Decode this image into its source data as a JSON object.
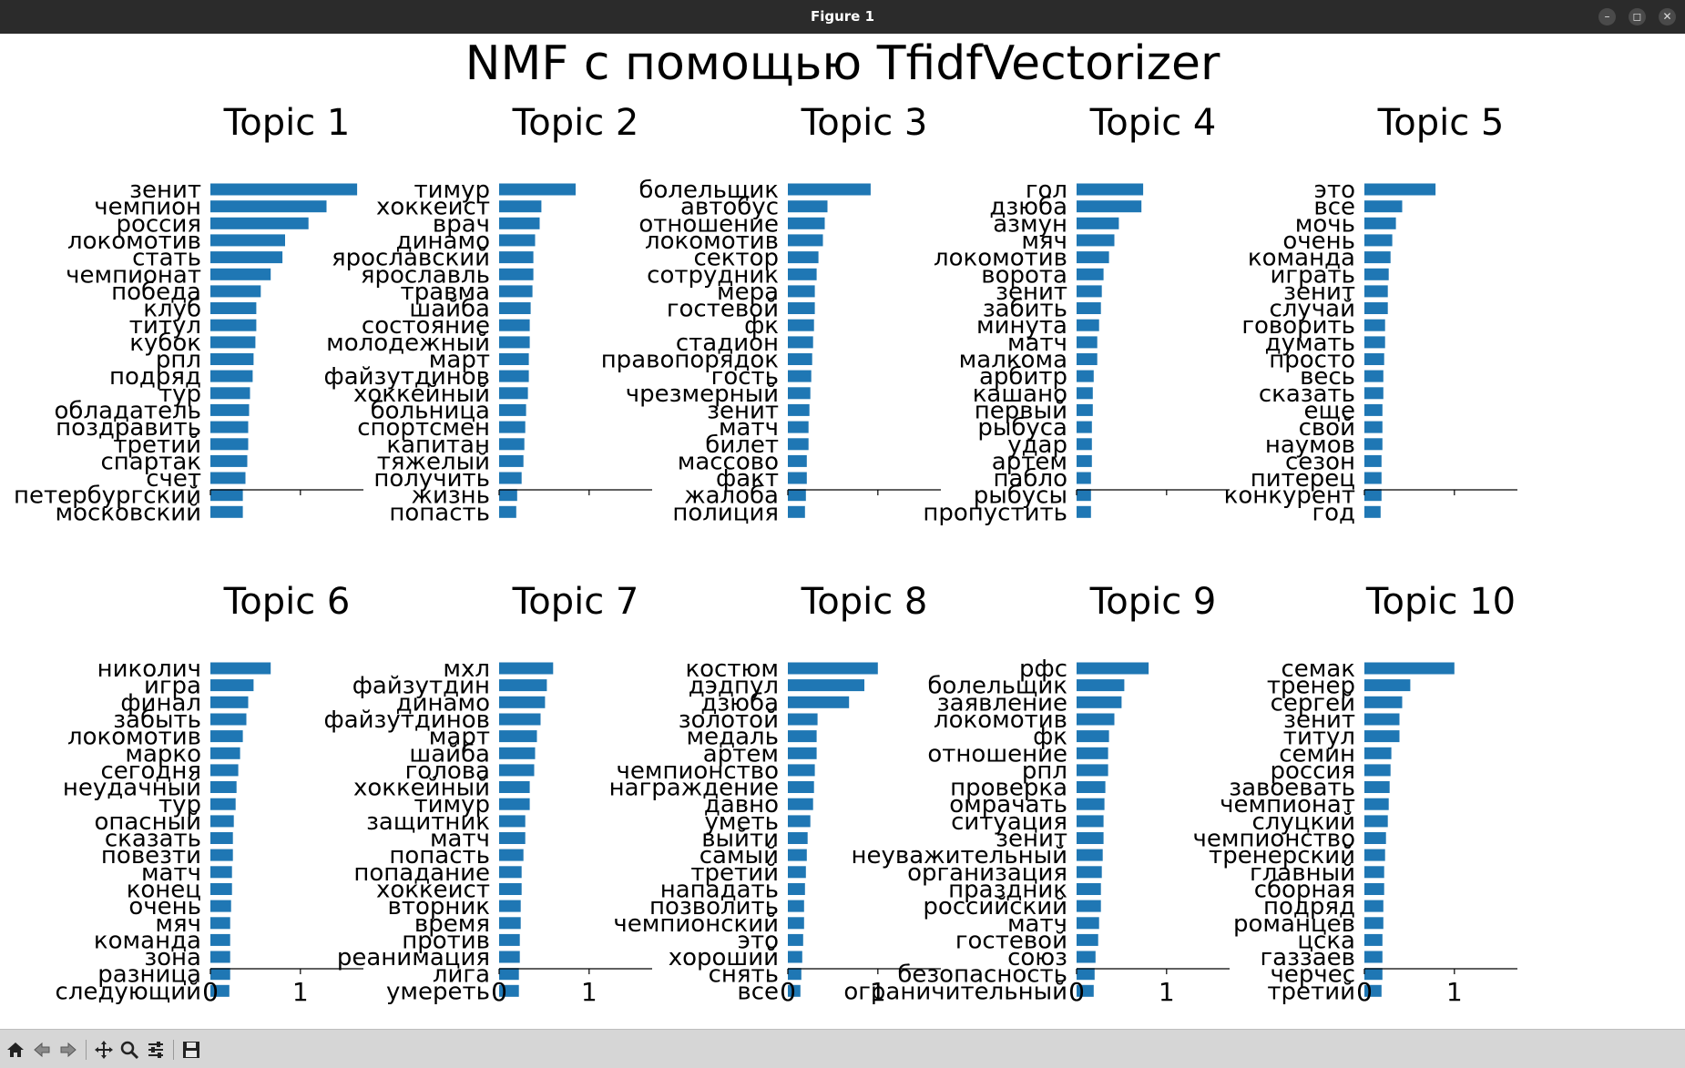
{
  "window": {
    "title": "Figure 1"
  },
  "toolbar": {
    "icons": [
      "home-icon",
      "back-icon",
      "forward-icon",
      "pan-icon",
      "zoom-icon",
      "configure-subplots-icon",
      "save-icon"
    ]
  },
  "colors": {
    "bar": "#1f77b4",
    "titlebar": "#2b2b2b",
    "toolbar": "#d6d6d6"
  },
  "chart_data": {
    "type": "bar",
    "orientation": "horizontal",
    "suptitle": "NMF с помощью TfidfVectorizer",
    "xlim": [
      0,
      1.7
    ],
    "xticks": [
      0,
      1
    ],
    "panels": [
      {
        "title": "Topic 1",
        "words": [
          "зенит",
          "чемпион",
          "россия",
          "локомотив",
          "стать",
          "чемпионат",
          "победа",
          "клуб",
          "титул",
          "кубок",
          "рпл",
          "подряд",
          "тур",
          "обладатель",
          "поздравить",
          "третий",
          "спартак",
          "счет",
          "петербургский",
          "московский"
        ],
        "values": [
          1.63,
          1.29,
          1.09,
          0.83,
          0.8,
          0.67,
          0.56,
          0.51,
          0.51,
          0.5,
          0.48,
          0.47,
          0.44,
          0.43,
          0.42,
          0.42,
          0.41,
          0.39,
          0.36,
          0.36
        ]
      },
      {
        "title": "Topic 2",
        "words": [
          "тимур",
          "хоккеист",
          "врач",
          "динамо",
          "ярославский",
          "ярославль",
          "травма",
          "шайба",
          "состояние",
          "молодежный",
          "март",
          "файзутдинов",
          "хоккейный",
          "больница",
          "спортсмен",
          "капитан",
          "тяжелый",
          "получить",
          "жизнь",
          "попасть"
        ],
        "values": [
          0.85,
          0.47,
          0.45,
          0.4,
          0.38,
          0.38,
          0.37,
          0.35,
          0.34,
          0.34,
          0.33,
          0.33,
          0.32,
          0.3,
          0.29,
          0.28,
          0.27,
          0.25,
          0.2,
          0.19
        ]
      },
      {
        "title": "Topic 3",
        "words": [
          "болельщик",
          "автобус",
          "отношение",
          "локомотив",
          "сектор",
          "сотрудник",
          "мера",
          "гостевой",
          "фк",
          "стадион",
          "правопорядок",
          "гость",
          "чрезмерный",
          "зенит",
          "матч",
          "билет",
          "массово",
          "факт",
          "жалоба",
          "полиция"
        ],
        "values": [
          0.92,
          0.44,
          0.41,
          0.39,
          0.34,
          0.32,
          0.3,
          0.3,
          0.29,
          0.28,
          0.27,
          0.26,
          0.25,
          0.24,
          0.23,
          0.23,
          0.21,
          0.21,
          0.2,
          0.19
        ]
      },
      {
        "title": "Topic 4",
        "words": [
          "гол",
          "дзюба",
          "азмун",
          "мяч",
          "локомотив",
          "ворота",
          "зенит",
          "забить",
          "минута",
          "матч",
          "малкома",
          "арбитр",
          "кашано",
          "первый",
          "рыбуса",
          "удар",
          "артем",
          "пабло",
          "рыбусы",
          "пропустить"
        ],
        "values": [
          0.74,
          0.72,
          0.47,
          0.42,
          0.36,
          0.3,
          0.28,
          0.27,
          0.25,
          0.23,
          0.23,
          0.19,
          0.18,
          0.18,
          0.17,
          0.17,
          0.17,
          0.16,
          0.16,
          0.16
        ]
      },
      {
        "title": "Topic 5",
        "words": [
          "это",
          "все",
          "мочь",
          "очень",
          "команда",
          "играть",
          "зенит",
          "случай",
          "говорить",
          "думать",
          "просто",
          "весь",
          "сказать",
          "еще",
          "свой",
          "наумов",
          "сезон",
          "питерец",
          "конкурент",
          "год"
        ],
        "values": [
          0.79,
          0.42,
          0.35,
          0.31,
          0.29,
          0.27,
          0.26,
          0.26,
          0.23,
          0.23,
          0.22,
          0.21,
          0.21,
          0.2,
          0.2,
          0.2,
          0.19,
          0.19,
          0.19,
          0.18
        ]
      },
      {
        "title": "Topic 6",
        "words": [
          "николич",
          "игра",
          "финал",
          "забыть",
          "локомотив",
          "марко",
          "сегодня",
          "неудачный",
          "тур",
          "опасный",
          "сказать",
          "повезти",
          "матч",
          "конец",
          "очень",
          "мяч",
          "команда",
          "зона",
          "разница",
          "следующий"
        ],
        "values": [
          0.67,
          0.48,
          0.42,
          0.4,
          0.36,
          0.33,
          0.31,
          0.29,
          0.28,
          0.26,
          0.25,
          0.25,
          0.24,
          0.24,
          0.23,
          0.22,
          0.22,
          0.22,
          0.22,
          0.21
        ]
      },
      {
        "title": "Topic 7",
        "words": [
          "мхл",
          "файзутдин",
          "динамо",
          "файзутдинов",
          "март",
          "шайба",
          "голова",
          "хоккейный",
          "тимур",
          "защитник",
          "матч",
          "попасть",
          "попадание",
          "хоккеист",
          "вторник",
          "время",
          "против",
          "реанимация",
          "лига",
          "умереть"
        ],
        "values": [
          0.6,
          0.53,
          0.51,
          0.46,
          0.42,
          0.4,
          0.39,
          0.34,
          0.34,
          0.29,
          0.29,
          0.27,
          0.25,
          0.25,
          0.24,
          0.24,
          0.23,
          0.23,
          0.22,
          0.22
        ]
      },
      {
        "title": "Topic 8",
        "words": [
          "костюм",
          "дэдпул",
          "дзюба",
          "золотой",
          "медаль",
          "артем",
          "чемпионство",
          "награждение",
          "давно",
          "уметь",
          "выйти",
          "самый",
          "третий",
          "нападать",
          "позволить",
          "чемпионский",
          "это",
          "хороший",
          "снять",
          "все"
        ],
        "values": [
          1.0,
          0.85,
          0.68,
          0.33,
          0.32,
          0.32,
          0.3,
          0.29,
          0.28,
          0.25,
          0.22,
          0.21,
          0.2,
          0.19,
          0.18,
          0.18,
          0.17,
          0.16,
          0.15,
          0.14
        ]
      },
      {
        "title": "Topic 9",
        "words": [
          "рфс",
          "болельщик",
          "заявление",
          "локомотив",
          "фк",
          "отношение",
          "рпл",
          "проверка",
          "омрачать",
          "ситуация",
          "зенит",
          "неуважительный",
          "организация",
          "праздник",
          "российский",
          "матч",
          "гостевой",
          "союз",
          "безопасность",
          "ограничительный"
        ],
        "values": [
          0.8,
          0.53,
          0.5,
          0.42,
          0.36,
          0.35,
          0.35,
          0.32,
          0.31,
          0.3,
          0.3,
          0.29,
          0.28,
          0.27,
          0.27,
          0.25,
          0.24,
          0.21,
          0.2,
          0.19
        ]
      },
      {
        "title": "Topic 10",
        "words": [
          "семак",
          "тренер",
          "сергей",
          "зенит",
          "титул",
          "семин",
          "россия",
          "завоевать",
          "чемпионат",
          "слуцкий",
          "чемпионство",
          "тренерский",
          "главный",
          "сборная",
          "подряд",
          "романцев",
          "цска",
          "газзаев",
          "черчес",
          "третий"
        ],
        "values": [
          1.0,
          0.51,
          0.42,
          0.39,
          0.39,
          0.3,
          0.29,
          0.28,
          0.27,
          0.26,
          0.24,
          0.23,
          0.22,
          0.22,
          0.21,
          0.21,
          0.2,
          0.2,
          0.2,
          0.19
        ]
      }
    ]
  }
}
